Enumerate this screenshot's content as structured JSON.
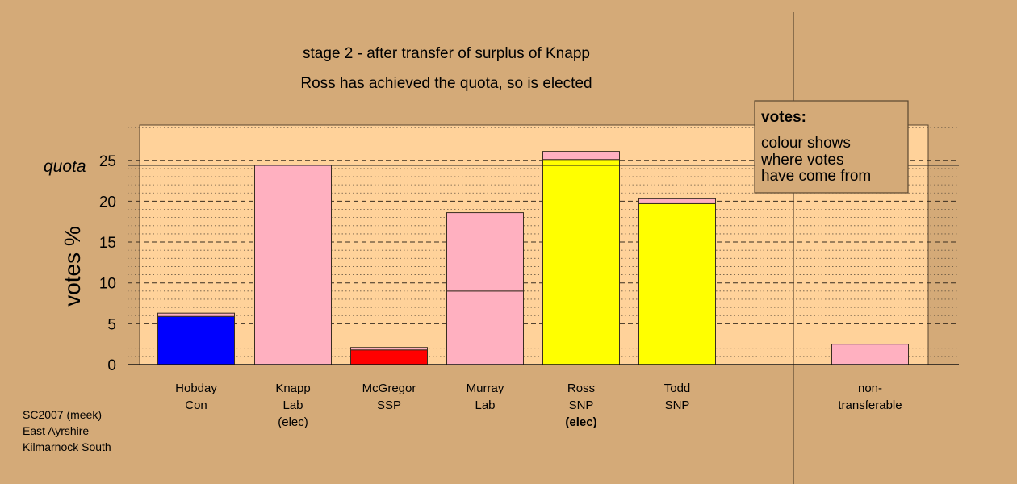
{
  "chart_data": {
    "type": "bar",
    "title": "stage 2 - after transfer of surplus of Knapp",
    "subtitle": "Ross has achieved the quota, so is elected",
    "ylabel": "votes %",
    "ylim": [
      0,
      29
    ],
    "yticks": [
      0,
      5,
      10,
      15,
      20,
      25
    ],
    "quota": 24.4,
    "quota_label": "quota",
    "grid": "dotted minor, dashed major",
    "legend_position": "top-right",
    "legend": {
      "heading": "votes:",
      "lines": [
        "colour shows",
        "where votes",
        "have come from"
      ]
    },
    "colors": {
      "Con": "#0000ff",
      "Lab": "#ffb0c0",
      "SSP": "#ff0000",
      "SNP": "#ffff00",
      "background": "#d4aa78",
      "plot": "#ffd29a"
    },
    "categories": [
      {
        "name": "Hobday",
        "party": "Con",
        "note": ""
      },
      {
        "name": "Knapp",
        "party": "Lab",
        "note": "(elec)"
      },
      {
        "name": "McGregor",
        "party": "SSP",
        "note": ""
      },
      {
        "name": "Murray",
        "party": "Lab",
        "note": ""
      },
      {
        "name": "Ross",
        "party": "SNP",
        "note": "(elec)"
      },
      {
        "name": "Todd",
        "party": "SNP",
        "note": ""
      }
    ],
    "bars": [
      {
        "segments": [
          {
            "value": 5.9,
            "color": "#0000ff"
          },
          {
            "value": 0.4,
            "color": "#ffb0c0"
          }
        ]
      },
      {
        "segments": [
          {
            "value": 24.4,
            "color": "#ffb0c0"
          }
        ]
      },
      {
        "segments": [
          {
            "value": 1.8,
            "color": "#ff0000"
          },
          {
            "value": 0.3,
            "color": "#ffb0c0"
          }
        ]
      },
      {
        "segments": [
          {
            "value": 9.0,
            "color": "#ffb0c0"
          },
          {
            "value": 9.6,
            "color": "#ffb0c0"
          }
        ]
      },
      {
        "segments": [
          {
            "value": 25.1,
            "color": "#ffff00"
          },
          {
            "value": 1.0,
            "color": "#ffb0c0"
          }
        ]
      },
      {
        "segments": [
          {
            "value": 19.7,
            "color": "#ffff00"
          },
          {
            "value": 0.6,
            "color": "#ffb0c0"
          }
        ]
      }
    ],
    "nontransferable": {
      "label_lines": [
        "non-",
        "transferable"
      ],
      "value": 2.5,
      "color": "#ffb0c0"
    }
  },
  "footer": {
    "lines": [
      "SC2007 (meek)",
      "East Ayrshire",
      "Kilmarnock South"
    ]
  }
}
